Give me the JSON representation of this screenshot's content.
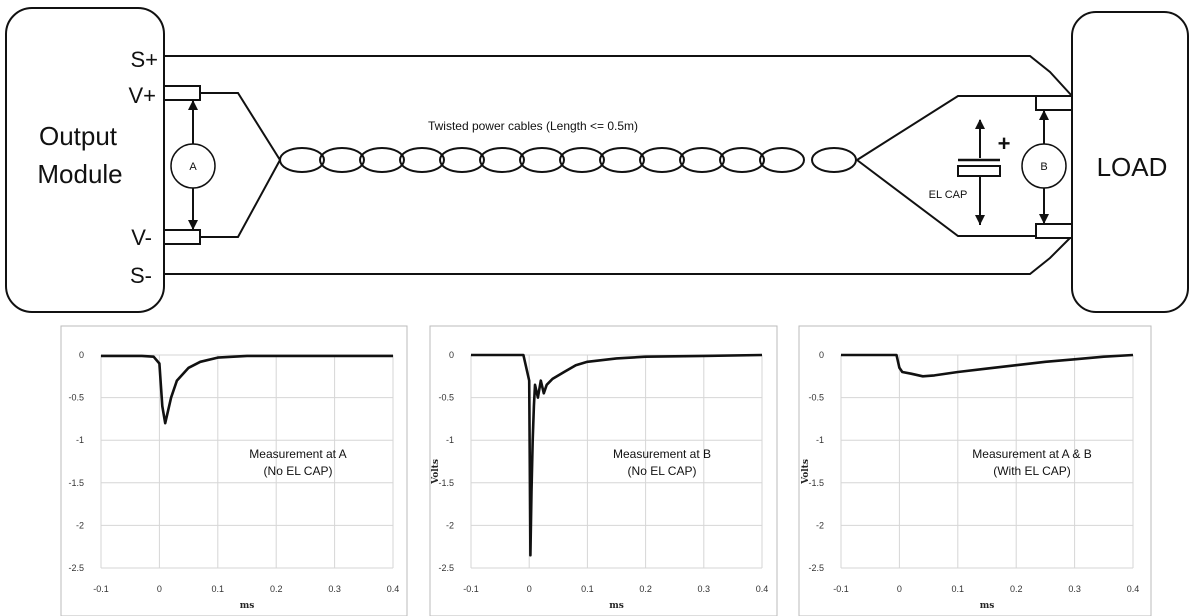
{
  "diagram": {
    "output_module": {
      "line1": "Output",
      "line2": "Module"
    },
    "load_label": "LOAD",
    "terminals": {
      "s_plus": "S+",
      "v_plus": "V+",
      "v_minus": "V-",
      "s_minus": "S-"
    },
    "meter_a": "A",
    "meter_b": "B",
    "cable_caption": "Twisted power cables (Length <= 0.5m)",
    "cap_label": "EL CAP",
    "cap_plus": "+"
  },
  "chart_data": [
    {
      "type": "line",
      "annotation": [
        "Measurement at A",
        "(No EL CAP)"
      ],
      "xlabel": "ms",
      "ylabel": "",
      "xlim": [
        -0.1,
        0.4
      ],
      "ylim": [
        -2.5,
        0
      ],
      "x_ticks": [
        "-0.1",
        "0",
        "0.1",
        "0.2",
        "0.3",
        "0.4"
      ],
      "y_ticks": [
        "0",
        "-0.5",
        "-1",
        "-1.5",
        "-2",
        "-2.5"
      ],
      "grid": true,
      "series": [
        {
          "x": [
            -0.1,
            -0.03,
            -0.01,
            0.0,
            0.005,
            0.01,
            0.02,
            0.03,
            0.05,
            0.07,
            0.1,
            0.15,
            0.2,
            0.3,
            0.4
          ],
          "y": [
            -0.01,
            -0.01,
            -0.02,
            -0.1,
            -0.6,
            -0.8,
            -0.5,
            -0.3,
            -0.15,
            -0.08,
            -0.03,
            -0.01,
            -0.01,
            -0.01,
            -0.01
          ]
        }
      ]
    },
    {
      "type": "line",
      "annotation": [
        "Measurement at B",
        "(No EL CAP)"
      ],
      "xlabel": "ms",
      "ylabel": "Volts",
      "xlim": [
        -0.1,
        0.4
      ],
      "ylim": [
        -2.5,
        0
      ],
      "x_ticks": [
        "-0.1",
        "0",
        "0.1",
        "0.2",
        "0.3",
        "0.4"
      ],
      "y_ticks": [
        "0",
        "-0.5",
        "-1",
        "-1.5",
        "-2",
        "-2.5"
      ],
      "grid": true,
      "series": [
        {
          "x": [
            -0.1,
            -0.01,
            0.0,
            0.002,
            0.004,
            0.006,
            0.008,
            0.01,
            0.015,
            0.02,
            0.025,
            0.03,
            0.04,
            0.06,
            0.08,
            0.1,
            0.15,
            0.2,
            0.3,
            0.4
          ],
          "y": [
            0,
            0,
            -0.3,
            -2.35,
            -1.6,
            -1.0,
            -0.6,
            -0.35,
            -0.5,
            -0.3,
            -0.45,
            -0.35,
            -0.28,
            -0.2,
            -0.12,
            -0.08,
            -0.04,
            -0.02,
            -0.01,
            0
          ]
        }
      ]
    },
    {
      "type": "line",
      "annotation": [
        "Measurement at A & B",
        "(With EL CAP)"
      ],
      "xlabel": "ms",
      "ylabel": "Volts",
      "xlim": [
        -0.1,
        0.4
      ],
      "ylim": [
        -2.5,
        0
      ],
      "x_ticks": [
        "-0.1",
        "0",
        "0.1",
        "0.2",
        "0.3",
        "0.4"
      ],
      "y_ticks": [
        "0",
        "-0.5",
        "-1",
        "-1.5",
        "-2",
        "-2.5"
      ],
      "grid": true,
      "series": [
        {
          "x": [
            -0.1,
            -0.005,
            0.0,
            0.005,
            0.02,
            0.04,
            0.06,
            0.1,
            0.15,
            0.2,
            0.25,
            0.3,
            0.35,
            0.4
          ],
          "y": [
            0,
            0,
            -0.15,
            -0.2,
            -0.22,
            -0.25,
            -0.24,
            -0.2,
            -0.16,
            -0.12,
            -0.08,
            -0.05,
            -0.02,
            0
          ]
        }
      ]
    }
  ]
}
